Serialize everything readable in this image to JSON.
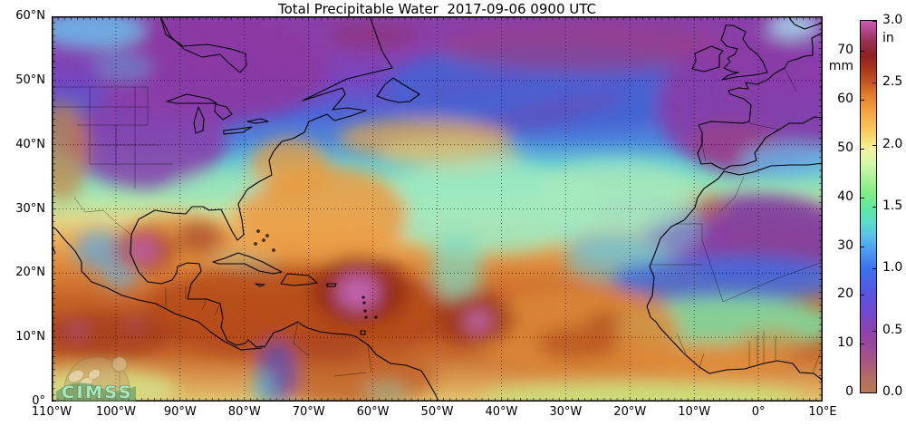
{
  "title": "Total Precipitable Water  2017-09-06 0900 UTC",
  "map": {
    "x_ticks": [
      "110°W",
      "100°W",
      "90°W",
      "80°W",
      "70°W",
      "60°W",
      "50°W",
      "40°W",
      "30°W",
      "20°W",
      "10°W",
      "0°",
      "10°E"
    ],
    "y_ticks": [
      "60°N",
      "50°N",
      "40°N",
      "30°N",
      "20°N",
      "10°N",
      "0°"
    ]
  },
  "colorbar": {
    "unit_left": "mm",
    "unit_right": "in",
    "max_mm": 76.2,
    "mm_ticks": [
      0,
      10,
      20,
      30,
      40,
      50,
      60,
      70
    ],
    "in_ticks": [
      "0.0",
      "0.5",
      "1.0",
      "1.5",
      "2.0",
      "2.5",
      "3.0"
    ],
    "stops": [
      {
        "mm": 0,
        "color": "#b97a52"
      },
      {
        "mm": 3,
        "color": "#b26b66"
      },
      {
        "mm": 6,
        "color": "#a85a7e"
      },
      {
        "mm": 9,
        "color": "#9c4a94"
      },
      {
        "mm": 12.7,
        "color": "#8c42ae"
      },
      {
        "mm": 16,
        "color": "#7448cc"
      },
      {
        "mm": 20,
        "color": "#5a54e0"
      },
      {
        "mm": 25.4,
        "color": "#3a72ec"
      },
      {
        "mm": 29,
        "color": "#4c9cf0"
      },
      {
        "mm": 32,
        "color": "#5ac0ea"
      },
      {
        "mm": 35,
        "color": "#5cdcc8"
      },
      {
        "mm": 38.1,
        "color": "#62e8a0"
      },
      {
        "mm": 41,
        "color": "#84ec84"
      },
      {
        "mm": 44,
        "color": "#acf296"
      },
      {
        "mm": 47,
        "color": "#d4f8a8"
      },
      {
        "mm": 50,
        "color": "#f4f4a0"
      },
      {
        "mm": 50.8,
        "color": "#f6ea84"
      },
      {
        "mm": 54,
        "color": "#f8c85c"
      },
      {
        "mm": 58,
        "color": "#f2a040"
      },
      {
        "mm": 61,
        "color": "#e07c2c"
      },
      {
        "mm": 63.5,
        "color": "#c65824"
      },
      {
        "mm": 66,
        "color": "#aa3a1c"
      },
      {
        "mm": 69,
        "color": "#8e2222"
      },
      {
        "mm": 72,
        "color": "#963054"
      },
      {
        "mm": 74,
        "color": "#ae4488"
      },
      {
        "mm": 76.2,
        "color": "#c85cb4"
      }
    ]
  },
  "logo": {
    "text": "CIMSS"
  },
  "chart_data": {
    "type": "heatmap",
    "title": "Total Precipitable Water  2017-09-06 0900 UTC",
    "units": [
      "mm",
      "in"
    ],
    "value_range_mm": [
      0,
      76.2
    ],
    "value_range_in": [
      0.0,
      3.0
    ],
    "lon_range": [
      "110°W",
      "10°E"
    ],
    "lat_range": [
      "0°",
      "60°N"
    ],
    "grid": "10-degree dotted graticule",
    "legend_position": "right colorbar"
  }
}
